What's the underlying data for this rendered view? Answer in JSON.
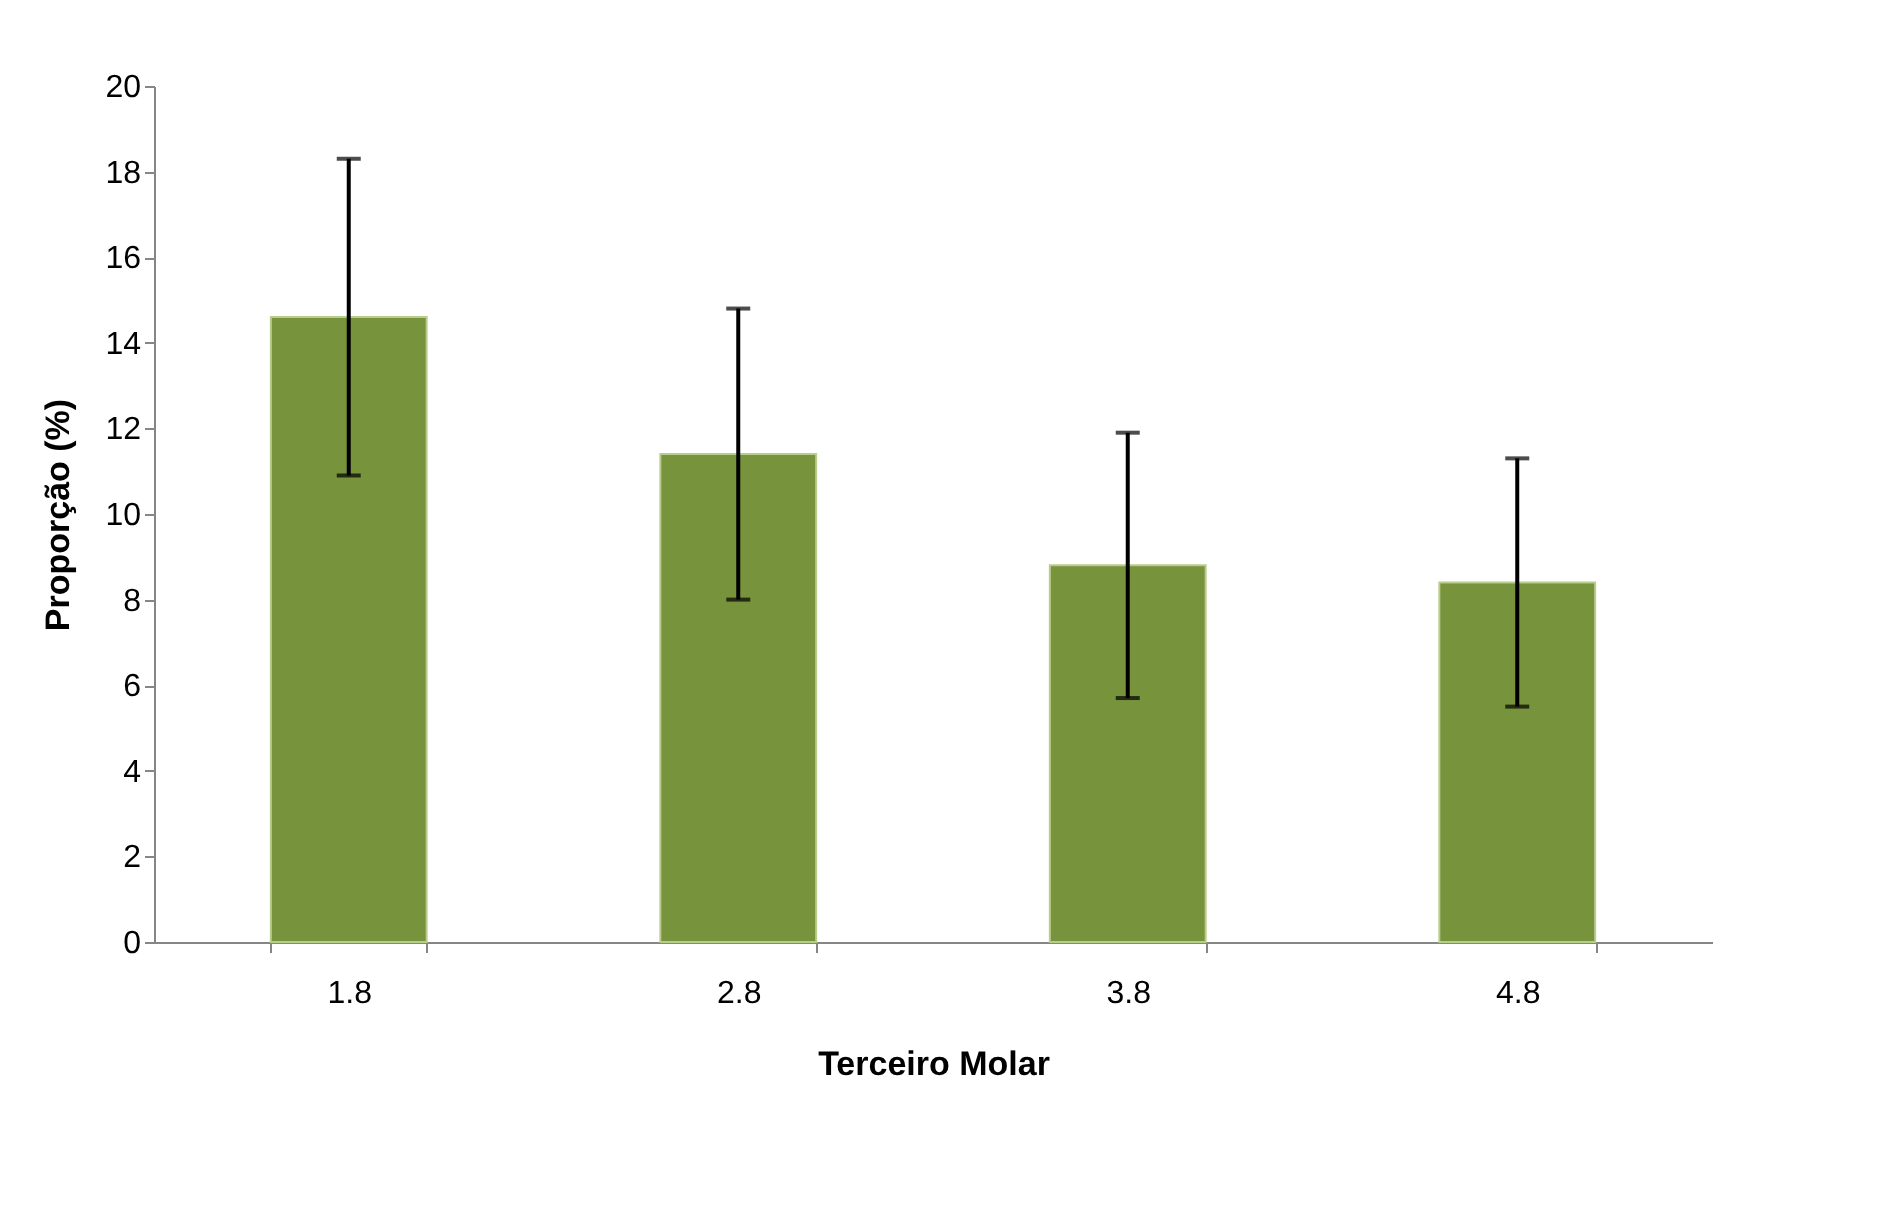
{
  "chart_data": {
    "type": "bar",
    "xlabel": "Terceiro Molar",
    "ylabel": "Proporção (%)",
    "categories": [
      "1.8",
      "2.8",
      "3.8",
      "4.8"
    ],
    "values": [
      14.6,
      11.4,
      8.8,
      8.4
    ],
    "errors": [
      3.7,
      3.4,
      3.1,
      2.9
    ],
    "color": "#77933c",
    "ylim": [
      0,
      20
    ],
    "yticks": [
      0,
      2,
      4,
      6,
      8,
      10,
      12,
      14,
      16,
      18,
      20
    ],
    "grid": false
  }
}
